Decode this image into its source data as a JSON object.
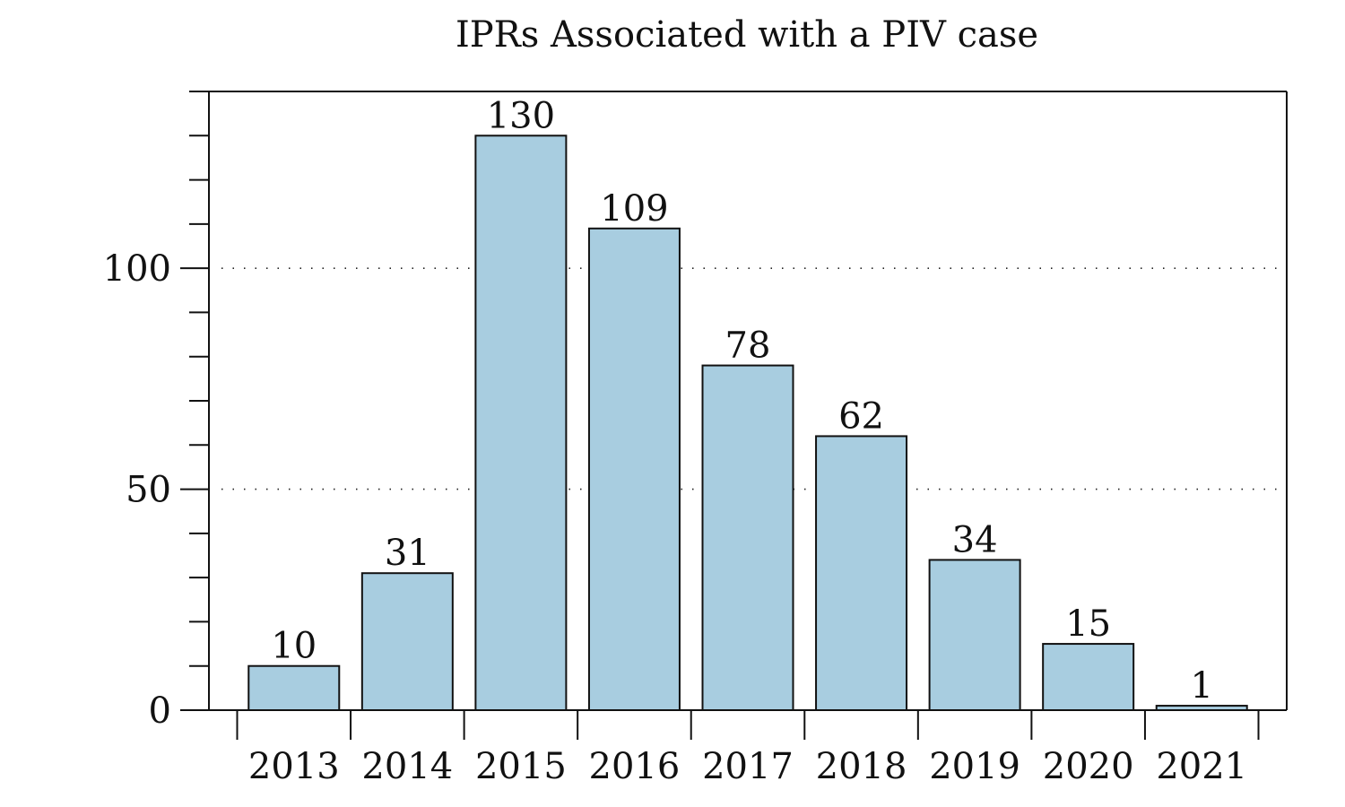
{
  "chart_data": {
    "type": "bar",
    "title": "IPRs Associated with a PIV case",
    "xlabel": "",
    "ylabel": "",
    "categories": [
      "2013",
      "2014",
      "2015",
      "2016",
      "2017",
      "2018",
      "2019",
      "2020",
      "2021"
    ],
    "values": [
      10,
      31,
      130,
      109,
      78,
      62,
      34,
      15,
      1
    ],
    "ylim": [
      0,
      140
    ],
    "y_major_ticks": [
      0,
      50,
      100
    ],
    "y_minor_step": 10,
    "grid": "horizontal dotted at major ticks",
    "legend": "none",
    "colors": {
      "bar_fill": "#a8cde0",
      "bar_edge": "#111111"
    }
  }
}
